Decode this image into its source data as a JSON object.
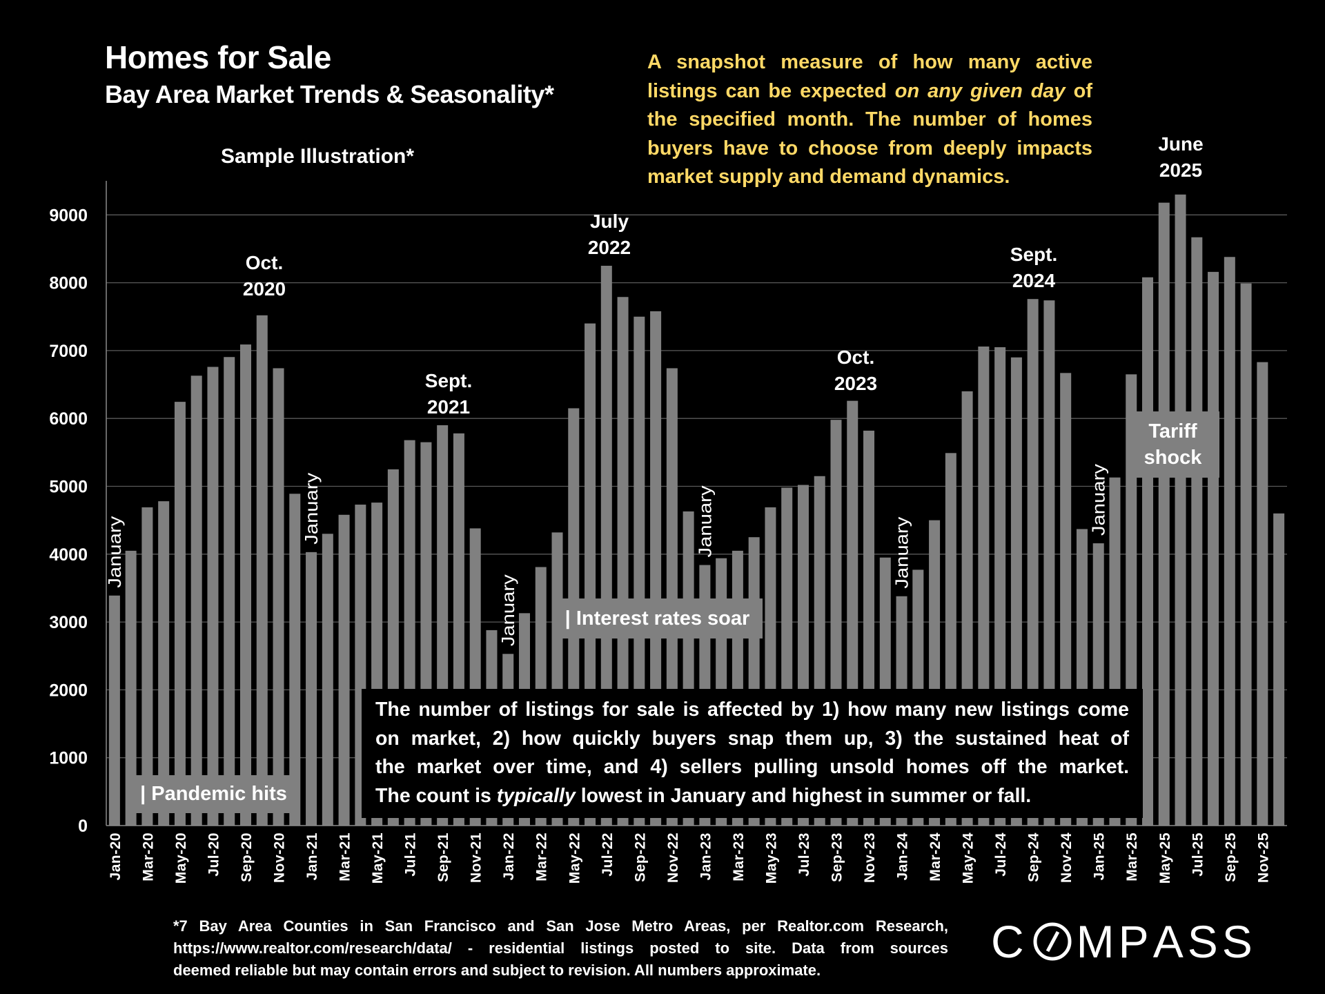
{
  "header": {
    "title": "Homes for Sale",
    "subtitle": "Bay Area Market Trends & Seasonality*",
    "sample_label": "Sample Illustration*"
  },
  "intro": {
    "lines": [
      "A snapshot measure of how many active",
      "listings can be expected ",
      "the specified month. The number of homes",
      "buyers have to choose from deeply impacts",
      "market supply and demand dynamics."
    ],
    "italic": "on any given day",
    "after_italic": " of"
  },
  "annotations": {
    "pandemic": "| Pandemic hits",
    "rates": "| Interest rates soar",
    "tariff_line1": "Tariff",
    "tariff_line2": "shock",
    "january": "January"
  },
  "peaks": [
    {
      "line1": "Oct.",
      "line2": "2020"
    },
    {
      "line1": "Sept.",
      "line2": "2021"
    },
    {
      "line1": "July",
      "line2": "2022"
    },
    {
      "line1": "Oct.",
      "line2": "2023"
    },
    {
      "line1": "Sept.",
      "line2": "2024"
    },
    {
      "line1": "June",
      "line2": "2025"
    }
  ],
  "note": {
    "line1": "The number of listings for sale is affected by 1) how many new listings come",
    "line2": "on market, 2) how quickly buyers snap them up, 3) the sustained heat of",
    "line3": "the market over time, and 4) sellers pulling unsold homes off the market.",
    "line4_a": "The count is ",
    "line4_italic": "typically",
    "line4_b": " lowest in January and highest in summer or fall."
  },
  "footnote": {
    "line1": "*7 Bay Area Counties in San Francisco and San Jose Metro Areas, per Realtor.com Research,",
    "line2": "https://www.realtor.com/research/data/ - residential listings posted to site.  Data from sources",
    "line3": "deemed reliable but may contain errors and subject to revision. All numbers approximate."
  },
  "logo": "COMPASS",
  "colors": {
    "bar": "#808080",
    "grid": "#5a5a5a",
    "intro_text": "#FFD966",
    "background": "#000000"
  },
  "chart_data": {
    "type": "bar",
    "title": "Homes for Sale",
    "xlabel": "",
    "ylabel": "",
    "ylim": [
      0,
      9500
    ],
    "yticks": [
      0,
      1000,
      2000,
      3000,
      4000,
      5000,
      6000,
      7000,
      8000,
      9000
    ],
    "grid": true,
    "categories": [
      "Jan-20",
      "Feb-20",
      "Mar-20",
      "Apr-20",
      "May-20",
      "Jun-20",
      "Jul-20",
      "Aug-20",
      "Sep-20",
      "Oct-20",
      "Nov-20",
      "Dec-20",
      "Jan-21",
      "Feb-21",
      "Mar-21",
      "Apr-21",
      "May-21",
      "Jun-21",
      "Jul-21",
      "Aug-21",
      "Sep-21",
      "Oct-21",
      "Nov-21",
      "Dec-21",
      "Jan-22",
      "Feb-22",
      "Mar-22",
      "Apr-22",
      "May-22",
      "Jun-22",
      "Jul-22",
      "Aug-22",
      "Sep-22",
      "Oct-22",
      "Nov-22",
      "Dec-22",
      "Jan-23",
      "Feb-23",
      "Mar-23",
      "Apr-23",
      "May-23",
      "Jun-23",
      "Jul-23",
      "Aug-23",
      "Sep-23",
      "Oct-23",
      "Nov-23",
      "Dec-23",
      "Jan-24",
      "Feb-24",
      "Mar-24",
      "Apr-24",
      "May-24",
      "Jun-24",
      "Jul-24",
      "Aug-24",
      "Sep-24",
      "Oct-24",
      "Nov-24",
      "Dec-24",
      "Jan-25",
      "Feb-25",
      "Mar-25",
      "Apr-25",
      "May-25",
      "Jun-25",
      "Jul-25",
      "Aug-25",
      "Sep-25",
      "Oct-25",
      "Nov-25",
      "Dec-25"
    ],
    "values": [
      3390,
      4050,
      4690,
      4780,
      6245,
      6630,
      6760,
      6905,
      7090,
      7520,
      6740,
      4890,
      4030,
      4300,
      4580,
      4730,
      4760,
      5250,
      5680,
      5650,
      5900,
      5780,
      4380,
      2880,
      2530,
      3130,
      3810,
      4320,
      6150,
      7400,
      8250,
      7790,
      7500,
      7580,
      6740,
      4630,
      3840,
      3940,
      4050,
      4250,
      4690,
      4980,
      5020,
      5150,
      5980,
      6260,
      5820,
      3950,
      3380,
      3770,
      4500,
      5490,
      6400,
      7060,
      7050,
      6900,
      7760,
      7740,
      6670,
      4370,
      4160,
      5130,
      6650,
      8080,
      9180,
      9300,
      8670,
      8160,
      8380,
      7990,
      6830,
      4600
    ],
    "annotations": [
      {
        "text": "Oct. 2020",
        "category": "Oct-20"
      },
      {
        "text": "Sept. 2021",
        "category": "Sep-21"
      },
      {
        "text": "July 2022",
        "category": "Jul-22"
      },
      {
        "text": "Oct. 2023",
        "category": "Oct-23"
      },
      {
        "text": "Sept. 2024",
        "category": "Sep-24"
      },
      {
        "text": "June 2025",
        "category": "Jun-25"
      },
      {
        "text": "January",
        "category": "Jan-20"
      },
      {
        "text": "January",
        "category": "Jan-21"
      },
      {
        "text": "January",
        "category": "Jan-22"
      },
      {
        "text": "January",
        "category": "Jan-23"
      },
      {
        "text": "January",
        "category": "Jan-24"
      },
      {
        "text": "January",
        "category": "Jan-25"
      }
    ]
  }
}
